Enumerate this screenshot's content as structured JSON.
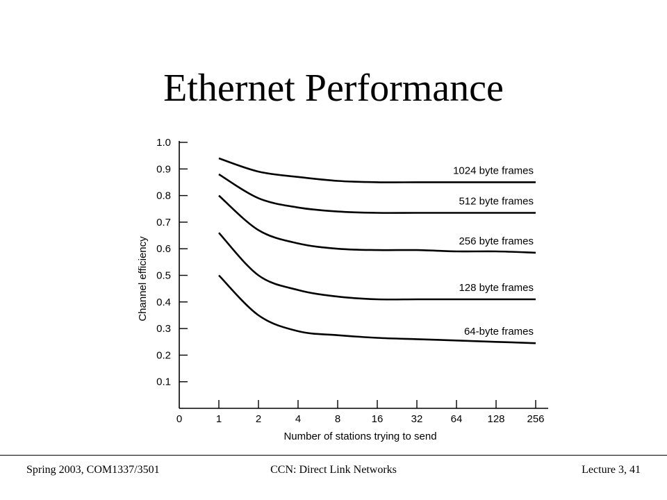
{
  "slide": {
    "title": "Ethernet Performance"
  },
  "footer": {
    "left": "Spring 2003, COM1337/3501",
    "center": "CCN: Direct Link Networks",
    "right": "Lecture 3, 41"
  },
  "chart_data": {
    "type": "line",
    "title": "",
    "xlabel": "Number of stations trying to send",
    "ylabel": "Channel efficiency",
    "x_ticks": [
      "0",
      "1",
      "2",
      "4",
      "8",
      "16",
      "32",
      "64",
      "128",
      "256"
    ],
    "y_ticks": [
      "0.1",
      "0.2",
      "0.3",
      "0.4",
      "0.5",
      "0.6",
      "0.7",
      "0.8",
      "0.9",
      "1.0"
    ],
    "ylim": [
      0,
      1.0
    ],
    "grid": false,
    "series": [
      {
        "name": "1024 byte frames",
        "x": [
          1,
          2,
          4,
          8,
          16,
          32,
          64,
          128,
          256
        ],
        "y": [
          0.94,
          0.89,
          0.87,
          0.855,
          0.85,
          0.85,
          0.85,
          0.85,
          0.85
        ]
      },
      {
        "name": "512 byte frames",
        "x": [
          1,
          2,
          4,
          8,
          16,
          32,
          64,
          128,
          256
        ],
        "y": [
          0.88,
          0.79,
          0.755,
          0.74,
          0.735,
          0.735,
          0.735,
          0.735,
          0.735
        ]
      },
      {
        "name": "256 byte frames",
        "x": [
          1,
          2,
          4,
          8,
          16,
          32,
          64,
          128,
          256
        ],
        "y": [
          0.8,
          0.67,
          0.62,
          0.6,
          0.595,
          0.595,
          0.59,
          0.59,
          0.585
        ]
      },
      {
        "name": "128 byte frames",
        "x": [
          1,
          2,
          4,
          8,
          16,
          32,
          64,
          128,
          256
        ],
        "y": [
          0.66,
          0.5,
          0.445,
          0.42,
          0.41,
          0.41,
          0.41,
          0.41,
          0.41
        ]
      },
      {
        "name": "64-byte frames",
        "x": [
          1,
          2,
          4,
          8,
          16,
          32,
          64,
          128,
          256
        ],
        "y": [
          0.5,
          0.35,
          0.29,
          0.275,
          0.265,
          0.26,
          0.255,
          0.25,
          0.245
        ]
      }
    ]
  }
}
